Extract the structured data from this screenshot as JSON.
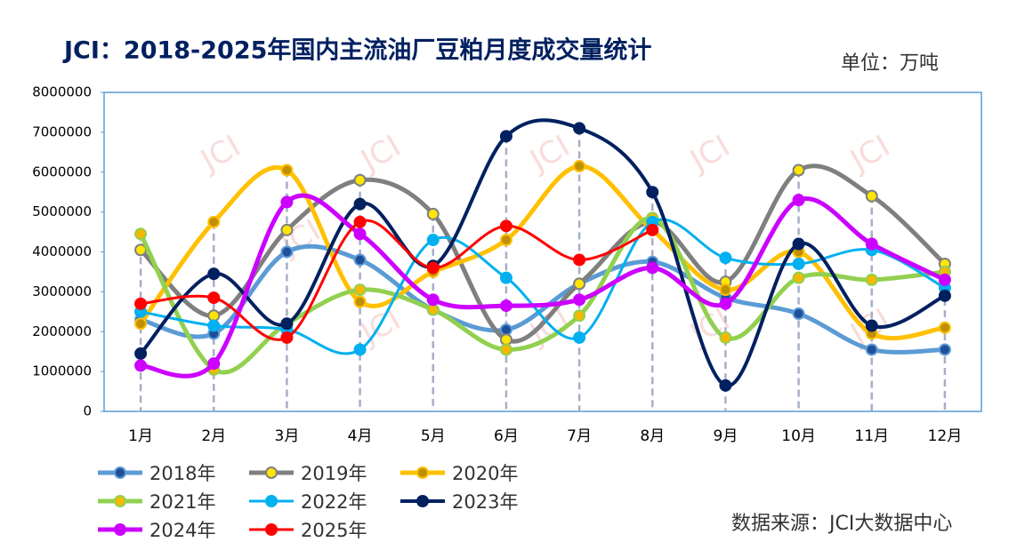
{
  "chart_data": {
    "type": "line",
    "title": "JCI：2018-2025年国内主流油厂豆粕月度成交量统计",
    "unit": "单位：万吨",
    "source": "数据来源：JCI大数据中心",
    "watermark": "JCI",
    "categories": [
      "1月",
      "2月",
      "3月",
      "4月",
      "5月",
      "6月",
      "7月",
      "8月",
      "9月",
      "10月",
      "11月",
      "12月"
    ],
    "ylim": [
      0,
      8000000
    ],
    "yticks": [
      0,
      1000000,
      2000000,
      3000000,
      4000000,
      5000000,
      6000000,
      7000000,
      8000000
    ],
    "smooth": true,
    "drop_lines": true,
    "series": [
      {
        "name": "2018年",
        "color": "#5b9bd5",
        "marker_color": "#1f4e9a",
        "width": 5,
        "values": [
          2300000,
          1950000,
          4000000,
          3800000,
          2550000,
          2050000,
          3200000,
          3750000,
          2850000,
          2450000,
          1550000,
          1550000
        ]
      },
      {
        "name": "2019年",
        "color": "#7f7f7f",
        "marker_color": "#ffe600",
        "width": 5,
        "values": [
          4050000,
          2400000,
          4550000,
          5800000,
          4950000,
          1800000,
          3200000,
          4750000,
          3250000,
          6050000,
          5400000,
          3700000
        ]
      },
      {
        "name": "2020年",
        "color": "#ffc000",
        "marker_color": "#c09000",
        "width": 5,
        "values": [
          2200000,
          4750000,
          6050000,
          2750000,
          3500000,
          4300000,
          6150000,
          4550000,
          3050000,
          4000000,
          1950000,
          2100000
        ]
      },
      {
        "name": "2021年",
        "color": "#92d050",
        "marker_color": "#f5b800",
        "width": 5,
        "values": [
          4450000,
          1050000,
          2200000,
          3050000,
          2550000,
          1550000,
          2400000,
          4850000,
          1850000,
          3350000,
          3300000,
          3500000
        ]
      },
      {
        "name": "2022年",
        "color": "#00b0f0",
        "marker_color": "#00b0f0",
        "width": 3,
        "values": [
          2500000,
          2150000,
          2050000,
          1550000,
          4300000,
          3350000,
          1850000,
          4750000,
          3850000,
          3700000,
          4050000,
          3100000
        ]
      },
      {
        "name": "2023年",
        "color": "#002060",
        "marker_color": "#002060",
        "width": 4,
        "values": [
          1450000,
          3450000,
          2200000,
          5200000,
          3650000,
          6900000,
          7100000,
          5500000,
          650000,
          4200000,
          2150000,
          2900000
        ]
      },
      {
        "name": "2024年",
        "color": "#cc00ff",
        "marker_color": "#cc00ff",
        "width": 5,
        "values": [
          1150000,
          1200000,
          5250000,
          4450000,
          2800000,
          2650000,
          2800000,
          3600000,
          2700000,
          5300000,
          4200000,
          3300000
        ]
      },
      {
        "name": "2025年",
        "color": "#ff0000",
        "marker_color": "#ff0000",
        "width": 3,
        "values": [
          2700000,
          2850000,
          1850000,
          4750000,
          3600000,
          4650000,
          3800000,
          4550000,
          null,
          null,
          null,
          null
        ]
      }
    ]
  }
}
